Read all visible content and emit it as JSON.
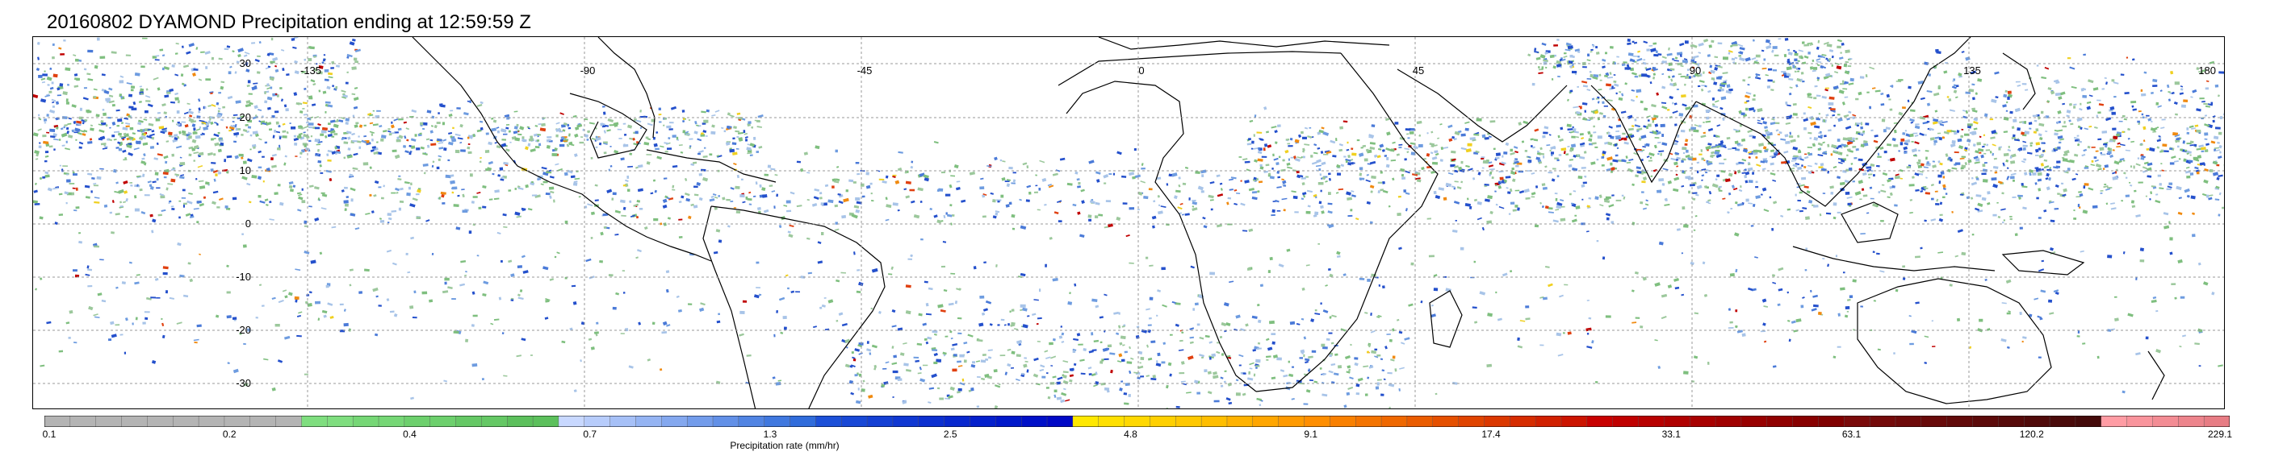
{
  "title": "20160802 DYAMOND Precipitation ending at 12:59:59 Z",
  "map": {
    "lon_labels": [
      "-135",
      "-90",
      "-45",
      "0",
      "45",
      "90",
      "135",
      "180"
    ],
    "lat_labels": [
      "30",
      "20",
      "10",
      "0",
      "-10",
      "-20",
      "-30"
    ],
    "gridlines": true,
    "land_outline_color": "#000000"
  },
  "colorbar": {
    "label": "Precipitation rate (mm/hr)",
    "ticks": [
      "0.1",
      "0.2",
      "0.4",
      "0.7",
      "1.3",
      "2.5",
      "4.8",
      "9.1",
      "17.4",
      "33.1",
      "63.1",
      "120.2",
      "229.1"
    ],
    "colors": [
      "#b4b4b4",
      "#b4b4b4",
      "#b4b4b4",
      "#b4b4b4",
      "#b4b4b4",
      "#b4b4b4",
      "#b4b4b4",
      "#b4b4b4",
      "#b4b4b4",
      "#b4b4b4",
      "#7fde7f",
      "#7fde7f",
      "#76d776",
      "#76d776",
      "#6dd06d",
      "#6dd06d",
      "#65c865",
      "#65c865",
      "#5cc05c",
      "#5cc05c",
      "#c8d8ff",
      "#b7ccfb",
      "#a6c0f7",
      "#95b4f3",
      "#84a8ef",
      "#739ceb",
      "#6290e7",
      "#5184e3",
      "#4078df",
      "#306cdb",
      "#1c50d8",
      "#1848d6",
      "#1440d4",
      "#1038d2",
      "#0c30d0",
      "#0828ce",
      "#0420cc",
      "#0018ca",
      "#0010c8",
      "#0008c6",
      "#ffe800",
      "#ffe000",
      "#ffd800",
      "#ffd000",
      "#ffc800",
      "#ffbe00",
      "#ffb200",
      "#ffa600",
      "#ff9a00",
      "#ff8e00",
      "#f98000",
      "#f47400",
      "#ef6800",
      "#ea5c00",
      "#e55000",
      "#e04400",
      "#db3800",
      "#d62c00",
      "#d12000",
      "#cc1400",
      "#c80000",
      "#c00000",
      "#b80000",
      "#b00000",
      "#a80000",
      "#a00000",
      "#980000",
      "#900000",
      "#880000",
      "#800000",
      "#7a0a0a",
      "#740a0a",
      "#6e0a0a",
      "#680a0a",
      "#620a0a",
      "#5c0a0a",
      "#560a0a",
      "#500a0a",
      "#4a0a0a",
      "#440a0a",
      "#ff9ca4",
      "#f9949c",
      "#f38c94",
      "#ed848c",
      "#e77c84"
    ]
  }
}
